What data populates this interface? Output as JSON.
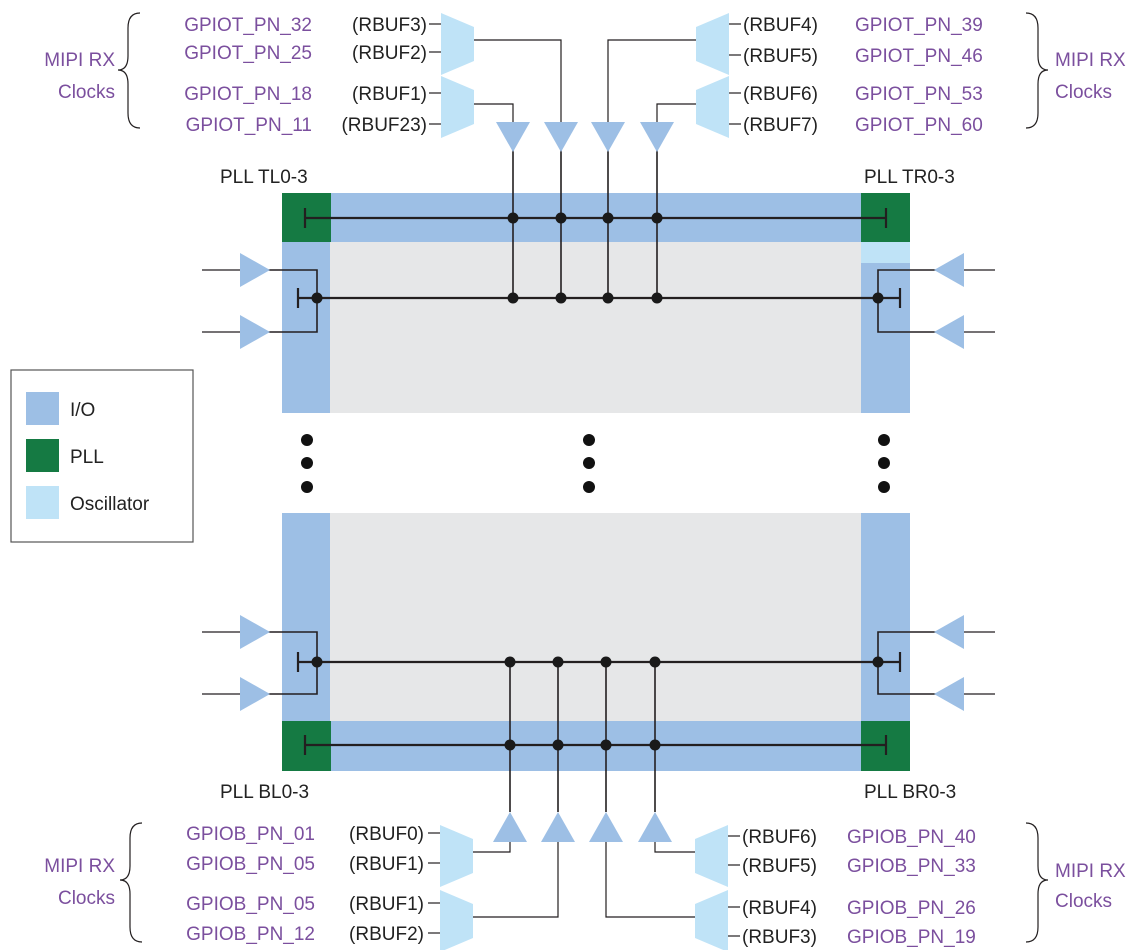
{
  "colors": {
    "io": "#9dbfe5",
    "pll": "#157a43",
    "oscillator": "#bfe3f7",
    "core": "#e6e7e8",
    "buffer": "#9dbfe5",
    "mux": "#bfe3f7",
    "pin_text": "#7b4f9e"
  },
  "pll_labels": {
    "tl": "PLL TL0-3",
    "tr": "PLL TR0-3",
    "bl": "PLL BL0-3",
    "br": "PLL BR0-3"
  },
  "groups": {
    "tl": "MIPI RX Clocks",
    "tl_line1": "MIPI RX",
    "tl_line2": "Clocks",
    "tr_line1": "MIPI RX",
    "tr_line2": "Clocks",
    "bl_line1": "MIPI RX",
    "bl_line2": "Clocks",
    "br_line1": "MIPI RX",
    "br_line2": "Clocks"
  },
  "top_left_pins": [
    {
      "pin": "GPIOT_PN_32",
      "rbuf": "(RBUF3)"
    },
    {
      "pin": "GPIOT_PN_25",
      "rbuf": "(RBUF2)"
    },
    {
      "pin": "GPIOT_PN_18",
      "rbuf": "(RBUF1)"
    },
    {
      "pin": "GPIOT_PN_11",
      "rbuf": "(RBUF23)"
    }
  ],
  "top_right_pins": [
    {
      "rbuf": "(RBUF4)",
      "pin": "GPIOT_PN_39"
    },
    {
      "rbuf": "(RBUF5)",
      "pin": "GPIOT_PN_46"
    },
    {
      "rbuf": "(RBUF6)",
      "pin": "GPIOT_PN_53"
    },
    {
      "rbuf": "(RBUF7)",
      "pin": "GPIOT_PN_60"
    }
  ],
  "bottom_left_pins": [
    {
      "pin": "GPIOB_PN_01",
      "rbuf": "(RBUF0)"
    },
    {
      "pin": "GPIOB_PN_05",
      "rbuf": "(RBUF1)"
    },
    {
      "pin": "GPIOB_PN_05",
      "rbuf": "(RBUF1)"
    },
    {
      "pin": "GPIOB_PN_12",
      "rbuf": "(RBUF2)"
    }
  ],
  "bottom_right_pins": [
    {
      "rbuf": "(RBUF6)",
      "pin": "GPIOB_PN_40"
    },
    {
      "rbuf": "(RBUF5)",
      "pin": "GPIOB_PN_33"
    },
    {
      "rbuf": "(RBUF4)",
      "pin": "GPIOB_PN_26"
    },
    {
      "rbuf": "(RBUF3)",
      "pin": "GPIOB_PN_19"
    }
  ],
  "legend": [
    {
      "label": "I/O",
      "color": "#9dbfe5"
    },
    {
      "label": "PLL",
      "color": "#157a43"
    },
    {
      "label": "Oscillator",
      "color": "#bfe3f7"
    }
  ]
}
